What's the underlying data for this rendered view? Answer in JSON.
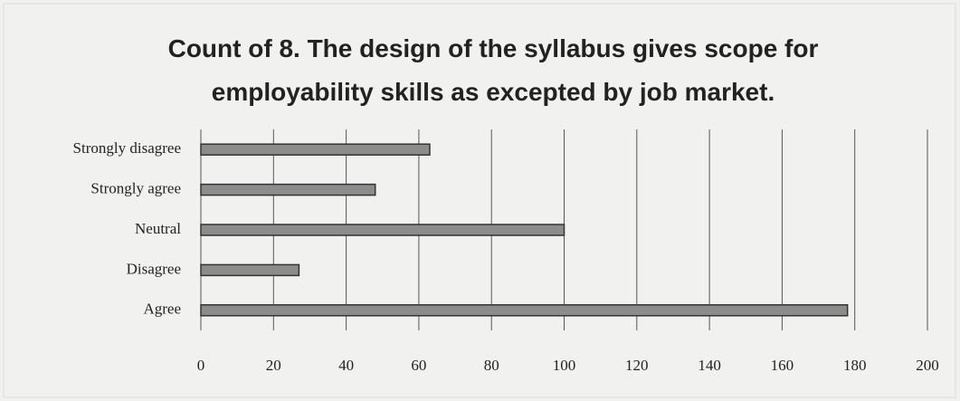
{
  "chart_data": {
    "type": "barh",
    "title": "Count of 8. The design of the syllabus gives scope for employability skills as excepted by job market.",
    "categories": [
      "Strongly disagree",
      "Strongly agree",
      "Neutral",
      "Disagree",
      "Agree"
    ],
    "values": [
      63,
      48,
      100,
      27,
      178
    ],
    "color": "#8c8c8c",
    "xlim": [
      0,
      200
    ],
    "xticks": [
      0,
      20,
      40,
      60,
      80,
      100,
      120,
      140,
      160,
      180,
      200
    ],
    "grid": true
  }
}
